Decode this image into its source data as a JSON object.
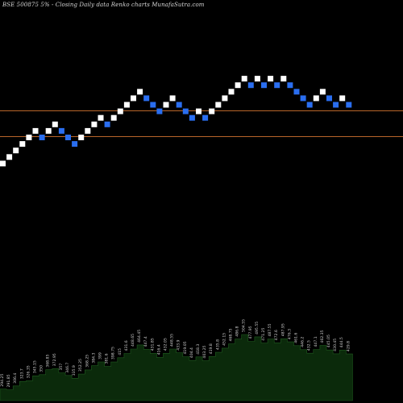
{
  "chart_data": {
    "type": "renko",
    "title": "BSE 500875 5% -  Closing Daily data  Renko  charts MunafaSutra.com",
    "colors": {
      "background": "#000000",
      "up_brick": "#ffffff",
      "down_brick": "#2a6ef0",
      "reference_line": "#b8652a",
      "volume_area": "#0b2a0b",
      "volume_label": "#cfcfcf"
    },
    "reference_lines": [
      {
        "level": "upper"
      },
      {
        "level": "lower"
      }
    ],
    "bricks": [
      {
        "dir": "up",
        "level": 1
      },
      {
        "dir": "up",
        "level": 2
      },
      {
        "dir": "up",
        "level": 3
      },
      {
        "dir": "up",
        "level": 4
      },
      {
        "dir": "up",
        "level": 5
      },
      {
        "dir": "up",
        "level": 6
      },
      {
        "dir": "down",
        "level": 5
      },
      {
        "dir": "up",
        "level": 6
      },
      {
        "dir": "up",
        "level": 7
      },
      {
        "dir": "down",
        "level": 6
      },
      {
        "dir": "down",
        "level": 5
      },
      {
        "dir": "down",
        "level": 4
      },
      {
        "dir": "up",
        "level": 5
      },
      {
        "dir": "up",
        "level": 6
      },
      {
        "dir": "up",
        "level": 7
      },
      {
        "dir": "up",
        "level": 8
      },
      {
        "dir": "down",
        "level": 7
      },
      {
        "dir": "up",
        "level": 8
      },
      {
        "dir": "up",
        "level": 9
      },
      {
        "dir": "up",
        "level": 10
      },
      {
        "dir": "up",
        "level": 11
      },
      {
        "dir": "up",
        "level": 12
      },
      {
        "dir": "down",
        "level": 11
      },
      {
        "dir": "down",
        "level": 10
      },
      {
        "dir": "down",
        "level": 9
      },
      {
        "dir": "up",
        "level": 10
      },
      {
        "dir": "up",
        "level": 11
      },
      {
        "dir": "down",
        "level": 10
      },
      {
        "dir": "down",
        "level": 9
      },
      {
        "dir": "down",
        "level": 8
      },
      {
        "dir": "up",
        "level": 9
      },
      {
        "dir": "down",
        "level": 8
      },
      {
        "dir": "up",
        "level": 9
      },
      {
        "dir": "up",
        "level": 10
      },
      {
        "dir": "up",
        "level": 11
      },
      {
        "dir": "up",
        "level": 12
      },
      {
        "dir": "up",
        "level": 13
      },
      {
        "dir": "up",
        "level": 14
      },
      {
        "dir": "down",
        "level": 13
      },
      {
        "dir": "up",
        "level": 14
      },
      {
        "dir": "down",
        "level": 13
      },
      {
        "dir": "up",
        "level": 14
      },
      {
        "dir": "down",
        "level": 13
      },
      {
        "dir": "up",
        "level": 14
      },
      {
        "dir": "down",
        "level": 13
      },
      {
        "dir": "down",
        "level": 12
      },
      {
        "dir": "down",
        "level": 11
      },
      {
        "dir": "down",
        "level": 10
      },
      {
        "dir": "up",
        "level": 11
      },
      {
        "dir": "up",
        "level": 12
      },
      {
        "dir": "down",
        "level": 11
      },
      {
        "dir": "down",
        "level": 10
      },
      {
        "dir": "up",
        "level": 11
      },
      {
        "dir": "down",
        "level": 10
      }
    ],
    "volume_labels": [
      "294.25",
      "291.85",
      "306.4",
      "323.7",
      "326.35",
      "345.15",
      "350",
      "368.85",
      "372.95",
      "357",
      "346.7",
      "335.9",
      "352.25",
      "368.25",
      "384.3",
      "399",
      "381.6",
      "398.75",
      "415",
      "431.6",
      "448.65",
      "464.45",
      "447.4",
      "431.85",
      "416.4",
      "432.05",
      "448.55",
      "433.9",
      "419.05",
      "404.4",
      "418.3",
      "403.25",
      "419.8",
      "435.8",
      "452.15",
      "468.75",
      "486.8",
      "504.55",
      "477.95",
      "495.55",
      "471.25",
      "487.55",
      "472.6",
      "487.95",
      "476.3",
      "461.6",
      "446.2",
      "432.5",
      "447.1",
      "462.35",
      "445.05",
      "430.45",
      "444.5",
      "429.8"
    ]
  }
}
